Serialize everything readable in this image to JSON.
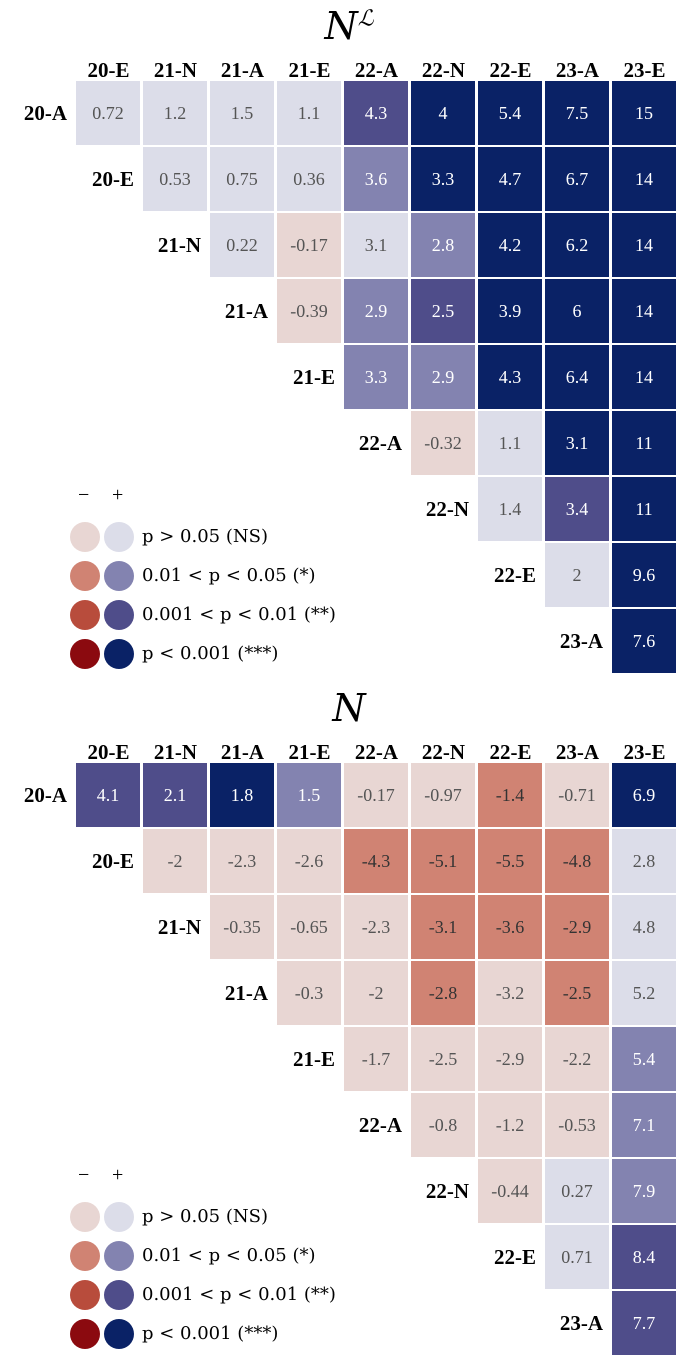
{
  "colors": {
    "neg_ns": "#e8d6d3",
    "neg_1": "#d08373",
    "neg_2": "#b84c3c",
    "neg_3": "#8b0a0f",
    "pos_ns": "#dcdde9",
    "pos_1": "#8383b0",
    "pos_2": "#4f4d8a",
    "pos_3": "#0a2266"
  },
  "legend": {
    "minus": "−",
    "plus": "+",
    "items": [
      {
        "text": "p > 0.05 (NS)"
      },
      {
        "text": "0.01 < p < 0.05 (*)"
      },
      {
        "text": "0.001 < p < 0.01 (**)"
      },
      {
        "text": "p < 0.001 (***)"
      }
    ]
  },
  "chart_data": [
    {
      "type": "heatmap",
      "title": "N",
      "title_sup": "ℒ",
      "columns": [
        "20-E",
        "21-N",
        "21-A",
        "21-E",
        "22-A",
        "22-N",
        "22-E",
        "23-A",
        "23-E"
      ],
      "rows": [
        "20-A",
        "20-E",
        "21-N",
        "21-A",
        "21-E",
        "22-A",
        "22-N",
        "22-E",
        "23-A"
      ],
      "values": [
        [
          0.72,
          1.2,
          1.5,
          1.1,
          4.3,
          4,
          5.4,
          7.5,
          15
        ],
        [
          0.53,
          0.75,
          0.36,
          3.6,
          3.3,
          4.7,
          6.7,
          14
        ],
        [
          0.22,
          -0.17,
          3.1,
          2.8,
          4.2,
          6.2,
          14
        ],
        [
          -0.39,
          2.9,
          2.5,
          3.9,
          6,
          14
        ],
        [
          3.3,
          2.9,
          4.3,
          6.4,
          14
        ],
        [
          -0.32,
          1.1,
          3.1,
          11
        ],
        [
          1.4,
          3.4,
          11
        ],
        [
          2,
          9.6
        ],
        [
          7.6
        ]
      ],
      "significance": [
        [
          0,
          0,
          0,
          0,
          2,
          3,
          3,
          3,
          3
        ],
        [
          0,
          0,
          0,
          1,
          3,
          3,
          3,
          3
        ],
        [
          0,
          0,
          0,
          1,
          3,
          3,
          3
        ],
        [
          0,
          1,
          2,
          3,
          3,
          3
        ],
        [
          1,
          1,
          3,
          3,
          3
        ],
        [
          0,
          0,
          3,
          3
        ],
        [
          0,
          2,
          3
        ],
        [
          0,
          3
        ],
        [
          3
        ]
      ]
    },
    {
      "type": "heatmap",
      "title": "N",
      "title_sup": "",
      "columns": [
        "20-E",
        "21-N",
        "21-A",
        "21-E",
        "22-A",
        "22-N",
        "22-E",
        "23-A",
        "23-E"
      ],
      "rows": [
        "20-A",
        "20-E",
        "21-N",
        "21-A",
        "21-E",
        "22-A",
        "22-N",
        "22-E",
        "23-A"
      ],
      "values": [
        [
          4.1,
          2.1,
          1.8,
          1.5,
          -0.17,
          -0.97,
          -1.4,
          -0.71,
          6.9
        ],
        [
          -2,
          -2.3,
          -2.6,
          -4.3,
          -5.1,
          -5.5,
          -4.8,
          2.8
        ],
        [
          -0.35,
          -0.65,
          -2.3,
          -3.1,
          -3.6,
          -2.9,
          4.8
        ],
        [
          -0.3,
          -2,
          -2.8,
          -3.2,
          -2.5,
          5.2
        ],
        [
          -1.7,
          -2.5,
          -2.9,
          -2.2,
          5.4
        ],
        [
          -0.8,
          -1.2,
          -0.53,
          7.1
        ],
        [
          -0.44,
          0.27,
          7.9
        ],
        [
          0.71,
          8.4
        ],
        [
          7.7
        ]
      ],
      "significance": [
        [
          2,
          2,
          3,
          1,
          0,
          0,
          1,
          0,
          3
        ],
        [
          0,
          0,
          0,
          1,
          1,
          1,
          1,
          0
        ],
        [
          0,
          0,
          0,
          1,
          1,
          1,
          0
        ],
        [
          0,
          0,
          1,
          0,
          1,
          0
        ],
        [
          0,
          0,
          0,
          0,
          1
        ],
        [
          0,
          0,
          0,
          1
        ],
        [
          0,
          0,
          1
        ],
        [
          0,
          2
        ],
        [
          2
        ]
      ]
    }
  ]
}
